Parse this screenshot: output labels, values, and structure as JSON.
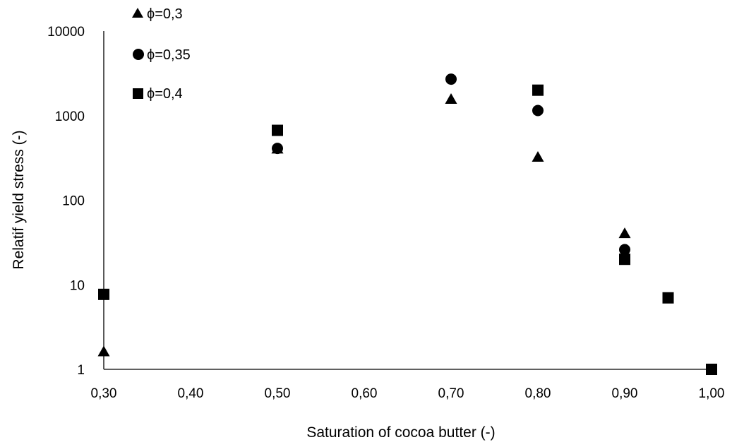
{
  "chart_data": {
    "type": "scatter",
    "title": "",
    "xlabel": "Saturation of cocoa butter (-)",
    "ylabel": "Relatif yield stress (-)",
    "xlim": [
      0.3,
      1.0
    ],
    "ylim": [
      1,
      10000
    ],
    "y_scale": "log",
    "grid": false,
    "legend_position": "top-left",
    "x_ticks": [
      "0,30",
      "0,40",
      "0,50",
      "0,60",
      "0,70",
      "0,80",
      "0,90",
      "1,00"
    ],
    "y_ticks": [
      "1",
      "10",
      "100",
      "1000",
      "10000"
    ],
    "series": [
      {
        "name": "ϕ=0,3",
        "marker": "triangle",
        "color": "#000000",
        "points": [
          [
            0.3,
            1.6
          ],
          [
            0.5,
            400
          ],
          [
            0.7,
            1550
          ],
          [
            0.8,
            320
          ],
          [
            0.9,
            40
          ]
        ]
      },
      {
        "name": "ϕ=0,35",
        "marker": "circle",
        "color": "#000000",
        "points": [
          [
            0.5,
            410
          ],
          [
            0.7,
            2700
          ],
          [
            0.8,
            1150
          ],
          [
            0.9,
            26
          ]
        ]
      },
      {
        "name": "ϕ=0,4",
        "marker": "square",
        "color": "#000000",
        "points": [
          [
            0.3,
            7.7
          ],
          [
            0.5,
            670
          ],
          [
            0.8,
            2000
          ],
          [
            0.9,
            20
          ],
          [
            0.95,
            7.0
          ],
          [
            1.0,
            1.0
          ]
        ]
      }
    ]
  }
}
